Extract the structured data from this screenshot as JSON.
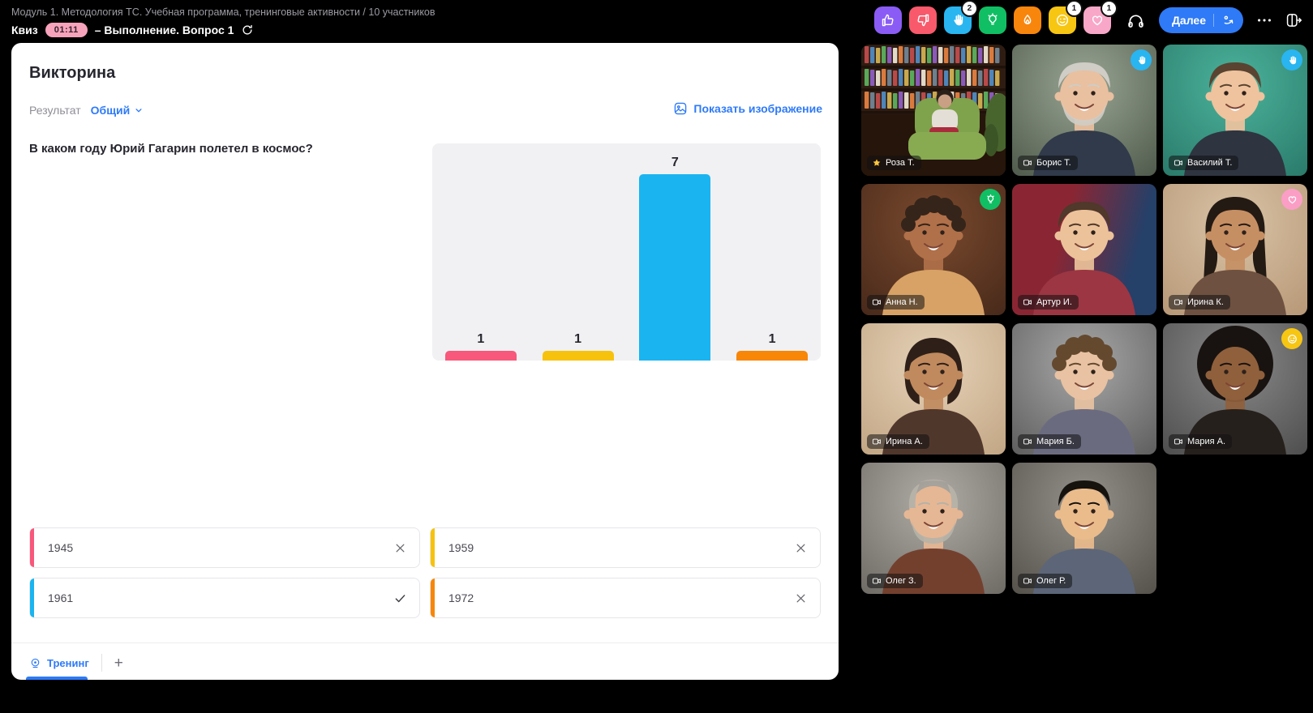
{
  "header": {
    "breadcrumb": "Модуль 1. Методология ТС. Учебная программа, тренинговые активности / 10 участников",
    "session_label": "Квиз",
    "timer": "01:11",
    "status": "– Выполнение. Вопрос 1",
    "next_button": "Далее",
    "reactions": [
      {
        "name": "thumbs-up",
        "color": "#8a5cf5",
        "count": null
      },
      {
        "name": "thumbs-down",
        "color": "#f8596b",
        "count": null
      },
      {
        "name": "raised-hand",
        "color": "#29b5f0",
        "count": "2"
      },
      {
        "name": "lightbulb",
        "color": "#10bf63",
        "count": null
      },
      {
        "name": "fire",
        "color": "#f8860d",
        "count": null
      },
      {
        "name": "smiley",
        "color": "#f7c613",
        "count": "1"
      },
      {
        "name": "heart",
        "color": "#f8a7c8",
        "count": "1"
      }
    ]
  },
  "quiz": {
    "title": "Викторина",
    "result_label": "Результат",
    "result_filter": "Общий",
    "show_image_label": "Показать изображение",
    "question": "В каком году Юрий Гагарин полетел в космос?",
    "answers": [
      {
        "text": "1945",
        "correct": false,
        "color": "#f8587b"
      },
      {
        "text": "1959",
        "correct": false,
        "color": "#f7c20d"
      },
      {
        "text": "1961",
        "correct": true,
        "color": "#1ab5f1"
      },
      {
        "text": "1972",
        "correct": false,
        "color": "#f88607"
      }
    ],
    "tab_label": "Тренинг",
    "add_tab_label": "+"
  },
  "chart_data": {
    "type": "bar",
    "categories": [
      "1945",
      "1959",
      "1961",
      "1972"
    ],
    "values": [
      1,
      1,
      7,
      1
    ],
    "value_labels": [
      "1",
      "1",
      "7",
      "1"
    ],
    "colors": [
      "#f8587b",
      "#f7c20d",
      "#1ab5f1",
      "#f88607"
    ],
    "title": "",
    "xlabel": "",
    "ylabel": "",
    "ylim": [
      0,
      7
    ],
    "grid": false,
    "background": "#f1f1f3"
  },
  "badge_colors": {
    "raised-hand": "#29b5f0",
    "lightbulb": "#10bf63",
    "heart": "#fb9ec6",
    "smiley": "#f7c613"
  },
  "accent_color": "#2e7af7",
  "participants": [
    {
      "name": "Роза Т.",
      "host": true,
      "badge": null,
      "look": {
        "scene": "library"
      }
    },
    {
      "name": "Борис Т.",
      "host": false,
      "badge": "raised-hand",
      "look": {
        "bg": "radial-gradient(circle at 50% 30%, #9aa694, #4f5a4c)",
        "skin": "#e9c0a0",
        "hair": "#cfcdc6",
        "shirt": "#303a4a",
        "style": "short",
        "beard": true
      }
    },
    {
      "name": "Василий Т.",
      "host": false,
      "badge": "raised-hand",
      "look": {
        "bg": "radial-gradient(circle at 50% 30%, #4bb39b, #2a7a6a)",
        "skin": "#eec39e",
        "hair": "#5a4330",
        "shirt": "#2e3440",
        "style": "short",
        "beard": false
      }
    },
    {
      "name": "Анна Н.",
      "host": false,
      "badge": "lightbulb",
      "look": {
        "bg": "radial-gradient(circle at 50% 30%, #7a4a2e, #48291a)",
        "skin": "#b07049",
        "hair": "#35241a",
        "shirt": "#d8a266",
        "style": "curly",
        "beard": false
      }
    },
    {
      "name": "Артур И.",
      "host": false,
      "badge": null,
      "look": {
        "bg": "linear-gradient(105deg, #8a2633 35%, #254069 80%)",
        "skin": "#ecc29a",
        "hair": "#50382a",
        "shirt": "#9c3642",
        "style": "short",
        "beard": false
      }
    },
    {
      "name": "Ирина К.",
      "host": false,
      "badge": "heart",
      "look": {
        "bg": "radial-gradient(circle at 50% 30%, #d9c3a6, #b79877)",
        "skin": "#c68f63",
        "hair": "#241a14",
        "shirt": "#6e5140",
        "style": "long",
        "beard": false
      }
    },
    {
      "name": "Ирина А.",
      "host": false,
      "badge": null,
      "look": {
        "bg": "radial-gradient(circle at 50% 30%, #e6d2b8, #c2a684)",
        "skin": "#c08a5e",
        "hair": "#2e2018",
        "shirt": "#50372c",
        "style": "bob",
        "beard": false
      }
    },
    {
      "name": "Мария Б.",
      "host": false,
      "badge": null,
      "look": {
        "bg": "radial-gradient(circle at 50% 30%, #a8a8a8, #5e5e5e)",
        "skin": "#e8c2a2",
        "hair": "#64492f",
        "shirt": "#6b6b80",
        "style": "curly",
        "beard": false
      }
    },
    {
      "name": "Мария А.",
      "host": false,
      "badge": "smiley",
      "look": {
        "bg": "radial-gradient(circle at 50% 30%, #8a8a8a, #4e4e4e)",
        "skin": "#90603c",
        "hair": "#181310",
        "shirt": "#26201c",
        "style": "afro",
        "beard": false
      }
    },
    {
      "name": "Олег З.",
      "host": false,
      "badge": null,
      "look": {
        "bg": "radial-gradient(circle at 50% 30%, #b0aca6, #6e6a64)",
        "skin": "#e6b794",
        "hair": "#b6b2a8",
        "shirt": "#74402e",
        "style": "balding",
        "beard": true
      }
    },
    {
      "name": "Олег Р.",
      "host": false,
      "badge": null,
      "look": {
        "bg": "radial-gradient(circle at 50% 30%, #94908a, #55514b)",
        "skin": "#eabc8c",
        "hair": "#16120e",
        "shirt": "#5c6678",
        "style": "short",
        "beard": false
      }
    }
  ]
}
